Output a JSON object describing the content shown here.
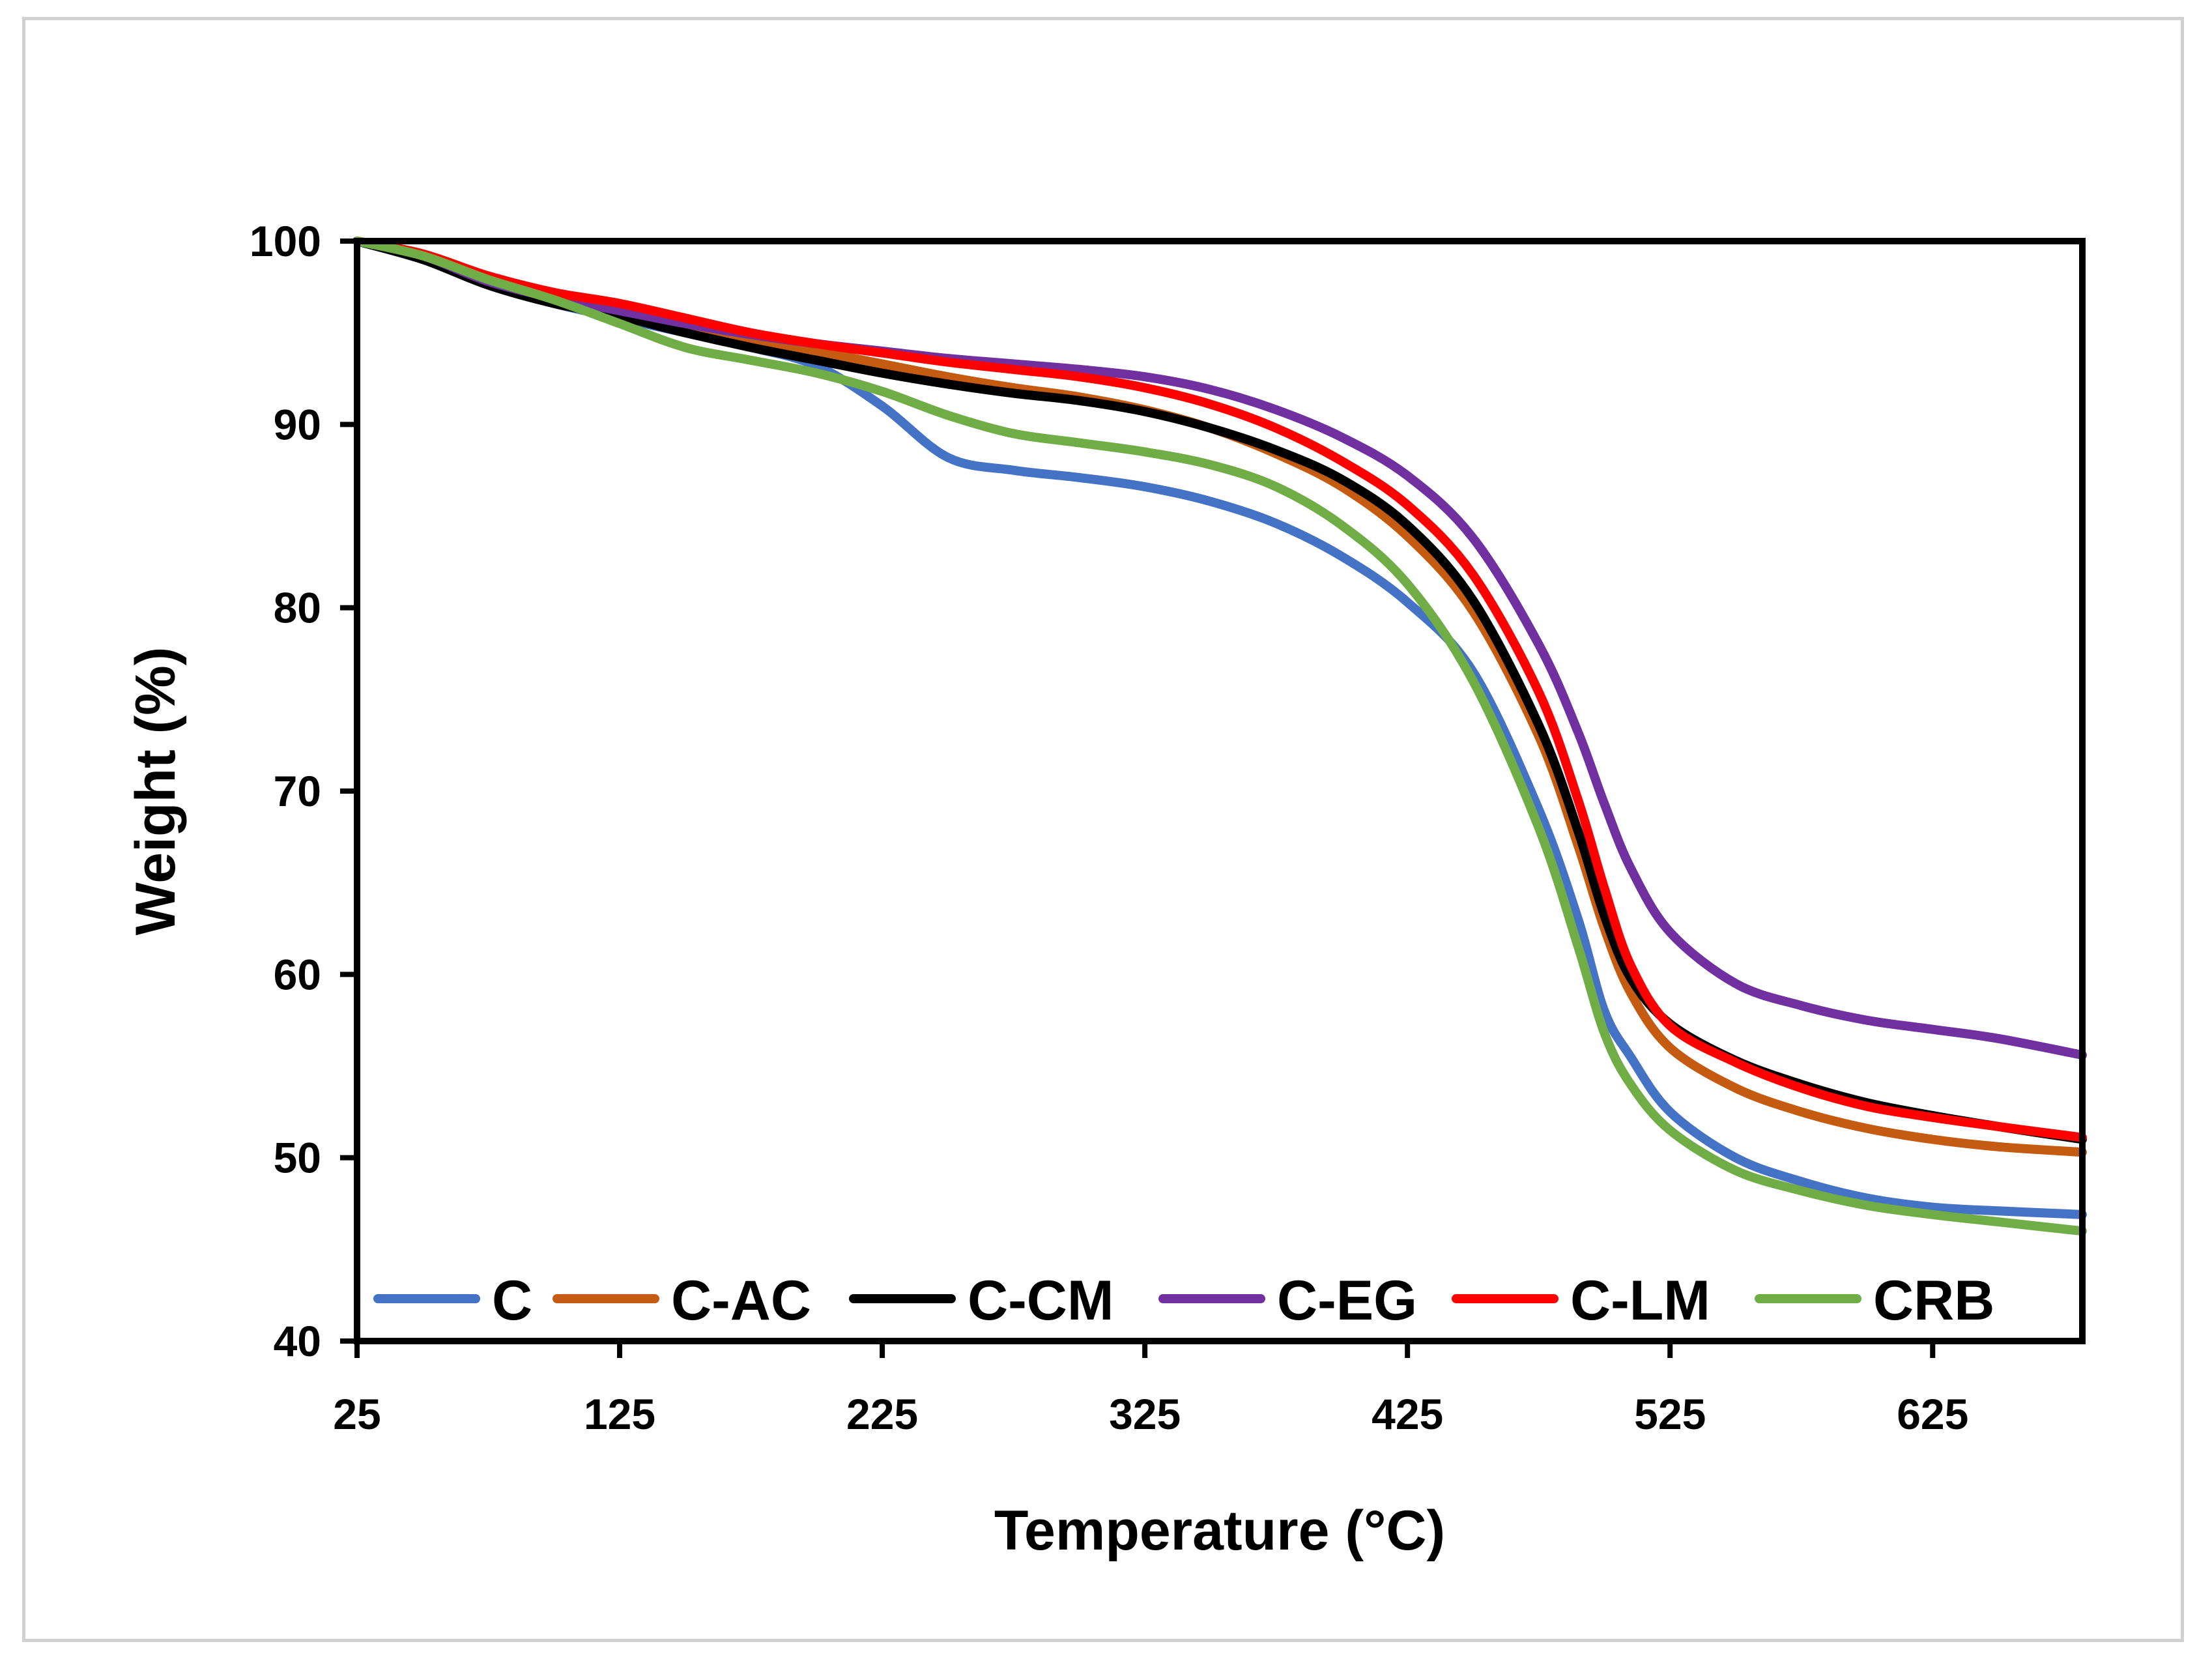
{
  "chart_data": {
    "type": "line",
    "title": "",
    "xlabel": "Temperature (°C)",
    "ylabel": "Weight (%)",
    "xlim": [
      25,
      682
    ],
    "ylim": [
      40,
      100
    ],
    "xticks": [
      25,
      125,
      225,
      325,
      425,
      525,
      625
    ],
    "yticks": [
      40,
      50,
      60,
      70,
      80,
      90,
      100
    ],
    "grid": false,
    "legend_position": "bottom-inside",
    "series": [
      {
        "name": "C",
        "color": "#4472C4",
        "x": [
          25,
          50,
          75,
          100,
          125,
          150,
          175,
          200,
          225,
          250,
          275,
          300,
          325,
          350,
          375,
          400,
          425,
          450,
          475,
          490,
          500,
          510,
          525,
          550,
          575,
          600,
          625,
          650,
          682
        ],
        "y": [
          100,
          99.0,
          97.7,
          96.6,
          95.8,
          95.0,
          94.2,
          93.2,
          91.0,
          88.2,
          87.5,
          87.1,
          86.6,
          85.8,
          84.6,
          82.8,
          80.3,
          76.5,
          69.0,
          63.0,
          58.0,
          55.5,
          52.5,
          50.0,
          48.7,
          47.8,
          47.3,
          47.1,
          46.9
        ]
      },
      {
        "name": "C-AC",
        "color": "#C55A11",
        "x": [
          25,
          50,
          75,
          100,
          125,
          150,
          175,
          200,
          225,
          250,
          275,
          300,
          325,
          350,
          375,
          400,
          425,
          450,
          475,
          490,
          500,
          510,
          525,
          550,
          575,
          600,
          625,
          650,
          682
        ],
        "y": [
          100,
          99.3,
          98.0,
          97.0,
          96.3,
          95.5,
          94.7,
          94.0,
          93.3,
          92.6,
          92.0,
          91.5,
          90.8,
          89.8,
          88.4,
          86.6,
          83.9,
          79.8,
          73.0,
          67.0,
          62.5,
          59.0,
          56.0,
          53.8,
          52.5,
          51.6,
          51.0,
          50.6,
          50.3
        ]
      },
      {
        "name": "C-CM",
        "color": "#000000",
        "x": [
          25,
          50,
          75,
          100,
          125,
          150,
          175,
          200,
          225,
          250,
          275,
          300,
          325,
          350,
          375,
          400,
          425,
          450,
          475,
          490,
          500,
          510,
          525,
          550,
          575,
          600,
          625,
          650,
          682
        ],
        "y": [
          100,
          99.0,
          97.6,
          96.6,
          95.9,
          95.0,
          94.2,
          93.5,
          92.8,
          92.2,
          91.7,
          91.3,
          90.7,
          89.8,
          88.6,
          87.0,
          84.5,
          80.4,
          73.6,
          67.8,
          63.2,
          59.8,
          57.3,
          55.3,
          54.0,
          53.0,
          52.3,
          51.7,
          51.0
        ]
      },
      {
        "name": "C-EG",
        "color": "#7030A0",
        "x": [
          25,
          50,
          75,
          100,
          125,
          150,
          175,
          200,
          225,
          250,
          275,
          300,
          325,
          350,
          375,
          400,
          425,
          450,
          475,
          490,
          500,
          510,
          525,
          550,
          575,
          600,
          625,
          650,
          682
        ],
        "y": [
          100,
          99.2,
          97.8,
          96.9,
          96.2,
          95.5,
          94.9,
          94.4,
          94.0,
          93.6,
          93.3,
          93.0,
          92.6,
          91.9,
          90.8,
          89.3,
          87.2,
          83.8,
          78.0,
          73.2,
          69.3,
          65.8,
          62.3,
          59.5,
          58.3,
          57.5,
          57.0,
          56.5,
          55.6
        ]
      },
      {
        "name": "C-LM",
        "color": "#FF0000",
        "x": [
          25,
          50,
          75,
          100,
          125,
          150,
          175,
          200,
          225,
          250,
          275,
          300,
          325,
          350,
          375,
          400,
          425,
          450,
          475,
          490,
          500,
          510,
          525,
          550,
          575,
          600,
          625,
          650,
          682
        ],
        "y": [
          100,
          99.3,
          98.1,
          97.2,
          96.6,
          95.8,
          95.0,
          94.4,
          93.9,
          93.4,
          93.0,
          92.6,
          92.0,
          91.1,
          89.8,
          88.0,
          85.6,
          81.8,
          75.4,
          69.5,
          64.7,
          60.5,
          57.2,
          55.2,
          53.8,
          52.8,
          52.2,
          51.7,
          51.1
        ]
      },
      {
        "name": "CRB",
        "color": "#70AD47",
        "x": [
          25,
          50,
          75,
          100,
          125,
          150,
          175,
          200,
          225,
          250,
          275,
          300,
          325,
          350,
          375,
          400,
          425,
          450,
          475,
          490,
          500,
          510,
          525,
          550,
          575,
          600,
          625,
          650,
          682
        ],
        "y": [
          100,
          99.2,
          97.9,
          96.8,
          95.5,
          94.2,
          93.5,
          92.8,
          91.8,
          90.5,
          89.5,
          89.0,
          88.5,
          87.8,
          86.6,
          84.5,
          81.3,
          76.0,
          68.0,
          61.5,
          56.8,
          54.0,
          51.5,
          49.3,
          48.2,
          47.4,
          46.9,
          46.5,
          46.0
        ]
      }
    ]
  }
}
